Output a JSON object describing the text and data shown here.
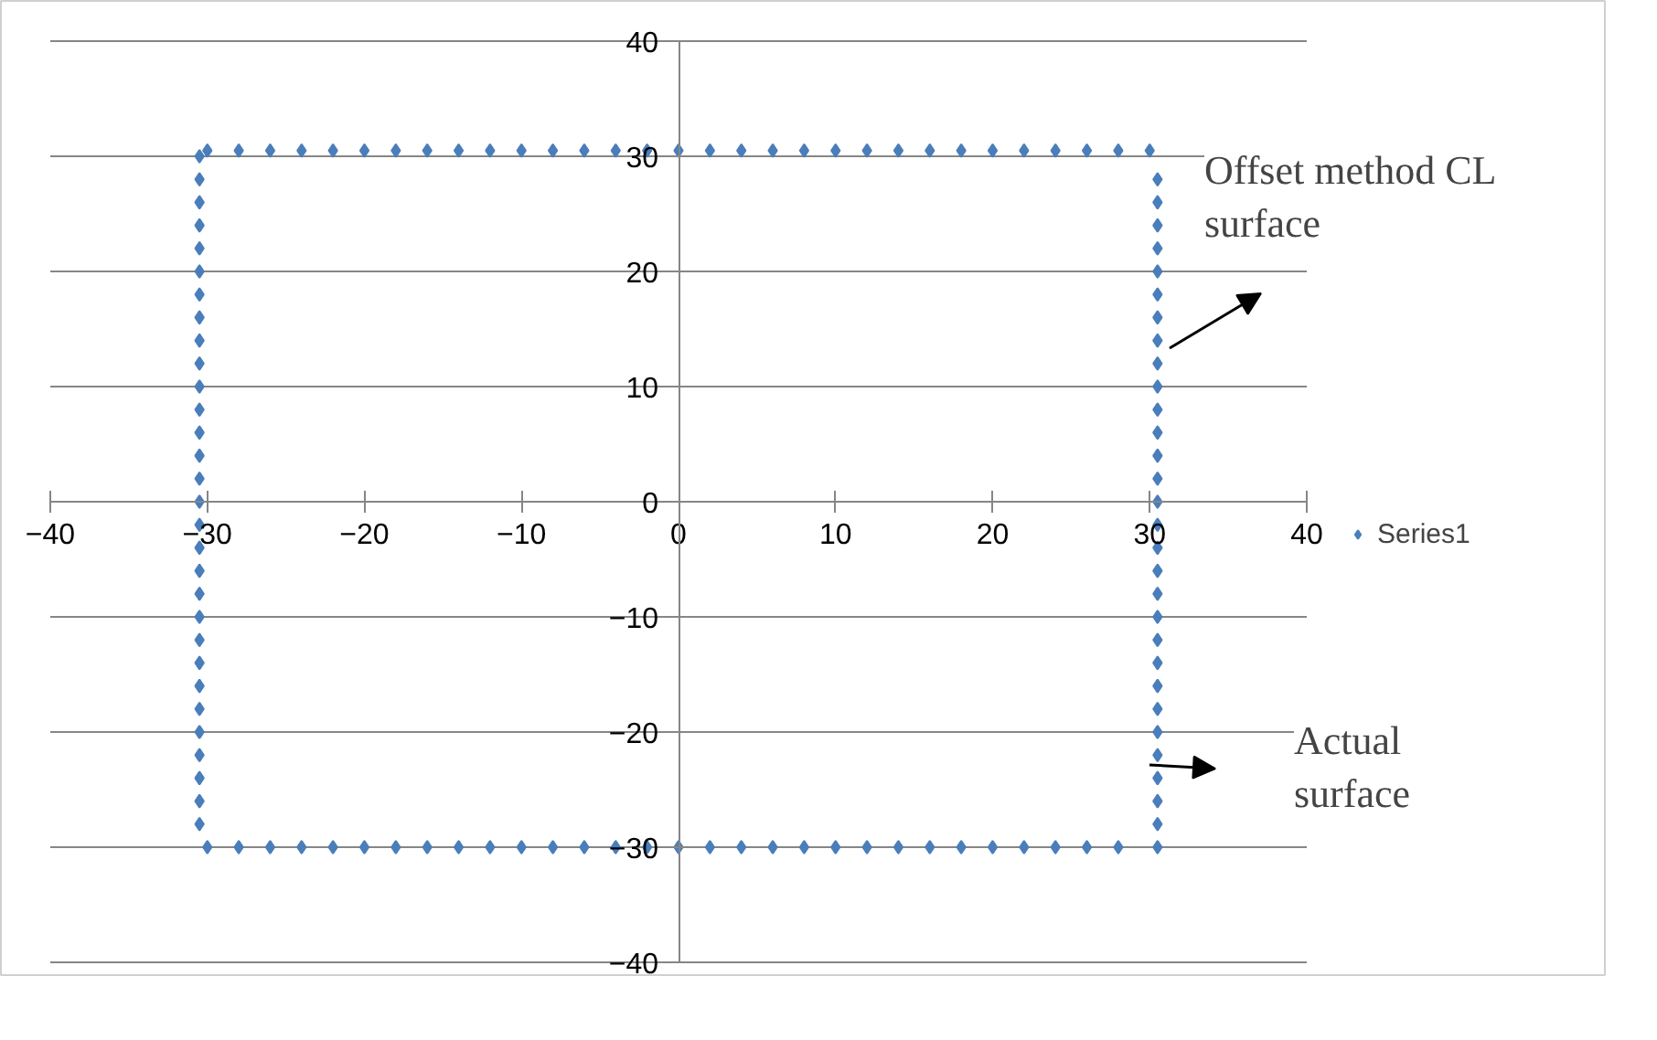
{
  "chart_data": {
    "type": "scatter",
    "xlim": [
      -40,
      40
    ],
    "ylim": [
      -40,
      40
    ],
    "xticks": [
      -40,
      -30,
      -20,
      -10,
      0,
      10,
      20,
      30,
      40
    ],
    "yticks": [
      -40,
      -30,
      -20,
      -10,
      0,
      10,
      20,
      30,
      40
    ],
    "grid": "y",
    "legend": "right",
    "marker": "diamond",
    "annotations": [
      "Offset method CL surface",
      "Actual surface"
    ],
    "series": [
      {
        "name": "Series1",
        "color": "#4a7ebb",
        "x": [
          -30,
          -28,
          -26,
          -24,
          -22,
          -20,
          -18,
          -16,
          -14,
          -12,
          -10,
          -8,
          -6,
          -4,
          -2,
          0,
          2,
          4,
          6,
          8,
          10,
          12,
          14,
          16,
          18,
          20,
          22,
          24,
          26,
          28,
          30,
          30.5,
          30.5,
          30.5,
          30.5,
          30.5,
          30.5,
          30.5,
          30.5,
          30.5,
          30.5,
          30.5,
          30.5,
          30.5,
          30.5,
          30.5,
          30.5,
          30.5,
          30.5,
          30.5,
          30.5,
          30.5,
          30.5,
          30.5,
          30.5,
          30.5,
          30.5,
          30.5,
          30.5,
          30.5,
          30.5,
          28,
          26,
          24,
          22,
          20,
          18,
          16,
          14,
          12,
          10,
          8,
          6,
          4,
          2,
          0,
          -2,
          -4,
          -6,
          -8,
          -10,
          -12,
          -14,
          -16,
          -18,
          -20,
          -22,
          -24,
          -26,
          -28,
          -30,
          -30.5,
          -30.5,
          -30.5,
          -30.5,
          -30.5,
          -30.5,
          -30.5,
          -30.5,
          -30.5,
          -30.5,
          -30.5,
          -30.5,
          -30.5,
          -30.5,
          -30.5,
          -30.5,
          -30.5,
          -30.5,
          -30.5,
          -30.5,
          -30.5,
          -30.5,
          -30.5,
          -30.5,
          -30.5,
          -30.5,
          -30.5,
          -30.5,
          -30.5,
          -30.5
        ],
        "values": [
          30.5,
          30.5,
          30.5,
          30.5,
          30.5,
          30.5,
          30.5,
          30.5,
          30.5,
          30.5,
          30.5,
          30.5,
          30.5,
          30.5,
          30.5,
          30.5,
          30.5,
          30.5,
          30.5,
          30.5,
          30.5,
          30.5,
          30.5,
          30.5,
          30.5,
          30.5,
          30.5,
          30.5,
          30.5,
          30.5,
          30.5,
          28,
          26,
          24,
          22,
          20,
          18,
          16,
          14,
          12,
          10,
          8,
          6,
          4,
          2,
          0,
          -2,
          -4,
          -6,
          -8,
          -10,
          -12,
          -14,
          -16,
          -18,
          -20,
          -22,
          -24,
          -26,
          -28,
          -30,
          -30,
          -30,
          -30,
          -30,
          -30,
          -30,
          -30,
          -30,
          -30,
          -30,
          -30,
          -30,
          -30,
          -30,
          -30,
          -30,
          -30,
          -30,
          -30,
          -30,
          -30,
          -30,
          -30,
          -30,
          -30,
          -30,
          -30,
          -30,
          -30,
          -30,
          -28,
          -26,
          -24,
          -22,
          -20,
          -18,
          -16,
          -14,
          -12,
          -10,
          -8,
          -6,
          -4,
          -2,
          0,
          2,
          4,
          6,
          8,
          10,
          12,
          14,
          16,
          18,
          20,
          22,
          24,
          26,
          28,
          30
        ]
      }
    ]
  }
}
